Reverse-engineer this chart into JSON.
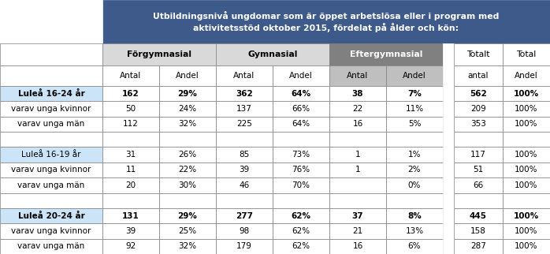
{
  "title": "Utbildningsnivå ungdomar som är öppet arbetslösa eller i program med\naktivitetsstöd oktober 2015, fördelat på ålder och kön:",
  "title_bg": "#3D5A8A",
  "title_fg": "#FFFFFF",
  "header1_bg_forg": "#D9D9D9",
  "header1_bg_gym": "#D9D9D9",
  "header1_bg_efter": "#808080",
  "header1_fg_efter": "#FFFFFF",
  "header2_bg_forg": "#FFFFFF",
  "header2_bg_gym": "#FFFFFF",
  "header2_bg_efter": "#BFBFBF",
  "lulea_row_bg": "#CCE4F7",
  "normal_row_bg": "#FFFFFF",
  "sep_col_bg": "#FFFFFF",
  "rows": [
    {
      "label": "Luleå 16-24 år",
      "bold": true,
      "highlight": true,
      "data": [
        "162",
        "29%",
        "362",
        "64%",
        "38",
        "7%",
        "562",
        "100%"
      ]
    },
    {
      "label": "varav unga kvinnor",
      "bold": false,
      "highlight": false,
      "data": [
        "50",
        "24%",
        "137",
        "66%",
        "22",
        "11%",
        "209",
        "100%"
      ]
    },
    {
      "label": "varav unga män",
      "bold": false,
      "highlight": false,
      "data": [
        "112",
        "32%",
        "225",
        "64%",
        "16",
        "5%",
        "353",
        "100%"
      ]
    },
    {
      "label": "",
      "bold": false,
      "highlight": false,
      "data": [
        "",
        "",
        "",
        "",
        "",
        "",
        "",
        ""
      ]
    },
    {
      "label": "Luleå 16-19 år",
      "bold": false,
      "highlight": true,
      "data": [
        "31",
        "26%",
        "85",
        "73%",
        "1",
        "1%",
        "117",
        "100%"
      ]
    },
    {
      "label": "varav unga kvinnor",
      "bold": false,
      "highlight": false,
      "data": [
        "11",
        "22%",
        "39",
        "76%",
        "1",
        "2%",
        "51",
        "100%"
      ]
    },
    {
      "label": "varav unga män",
      "bold": false,
      "highlight": false,
      "data": [
        "20",
        "30%",
        "46",
        "70%",
        "",
        "0%",
        "66",
        "100%"
      ]
    },
    {
      "label": "",
      "bold": false,
      "highlight": false,
      "data": [
        "",
        "",
        "",
        "",
        "",
        "",
        "",
        ""
      ]
    },
    {
      "label": "Luleå 20-24 år",
      "bold": true,
      "highlight": true,
      "data": [
        "131",
        "29%",
        "277",
        "62%",
        "37",
        "8%",
        "445",
        "100%"
      ]
    },
    {
      "label": "varav unga kvinnor",
      "bold": false,
      "highlight": false,
      "data": [
        "39",
        "25%",
        "98",
        "62%",
        "21",
        "13%",
        "158",
        "100%"
      ]
    },
    {
      "label": "varav unga män",
      "bold": false,
      "highlight": false,
      "data": [
        "92",
        "32%",
        "179",
        "62%",
        "16",
        "6%",
        "287",
        "100%"
      ]
    }
  ]
}
